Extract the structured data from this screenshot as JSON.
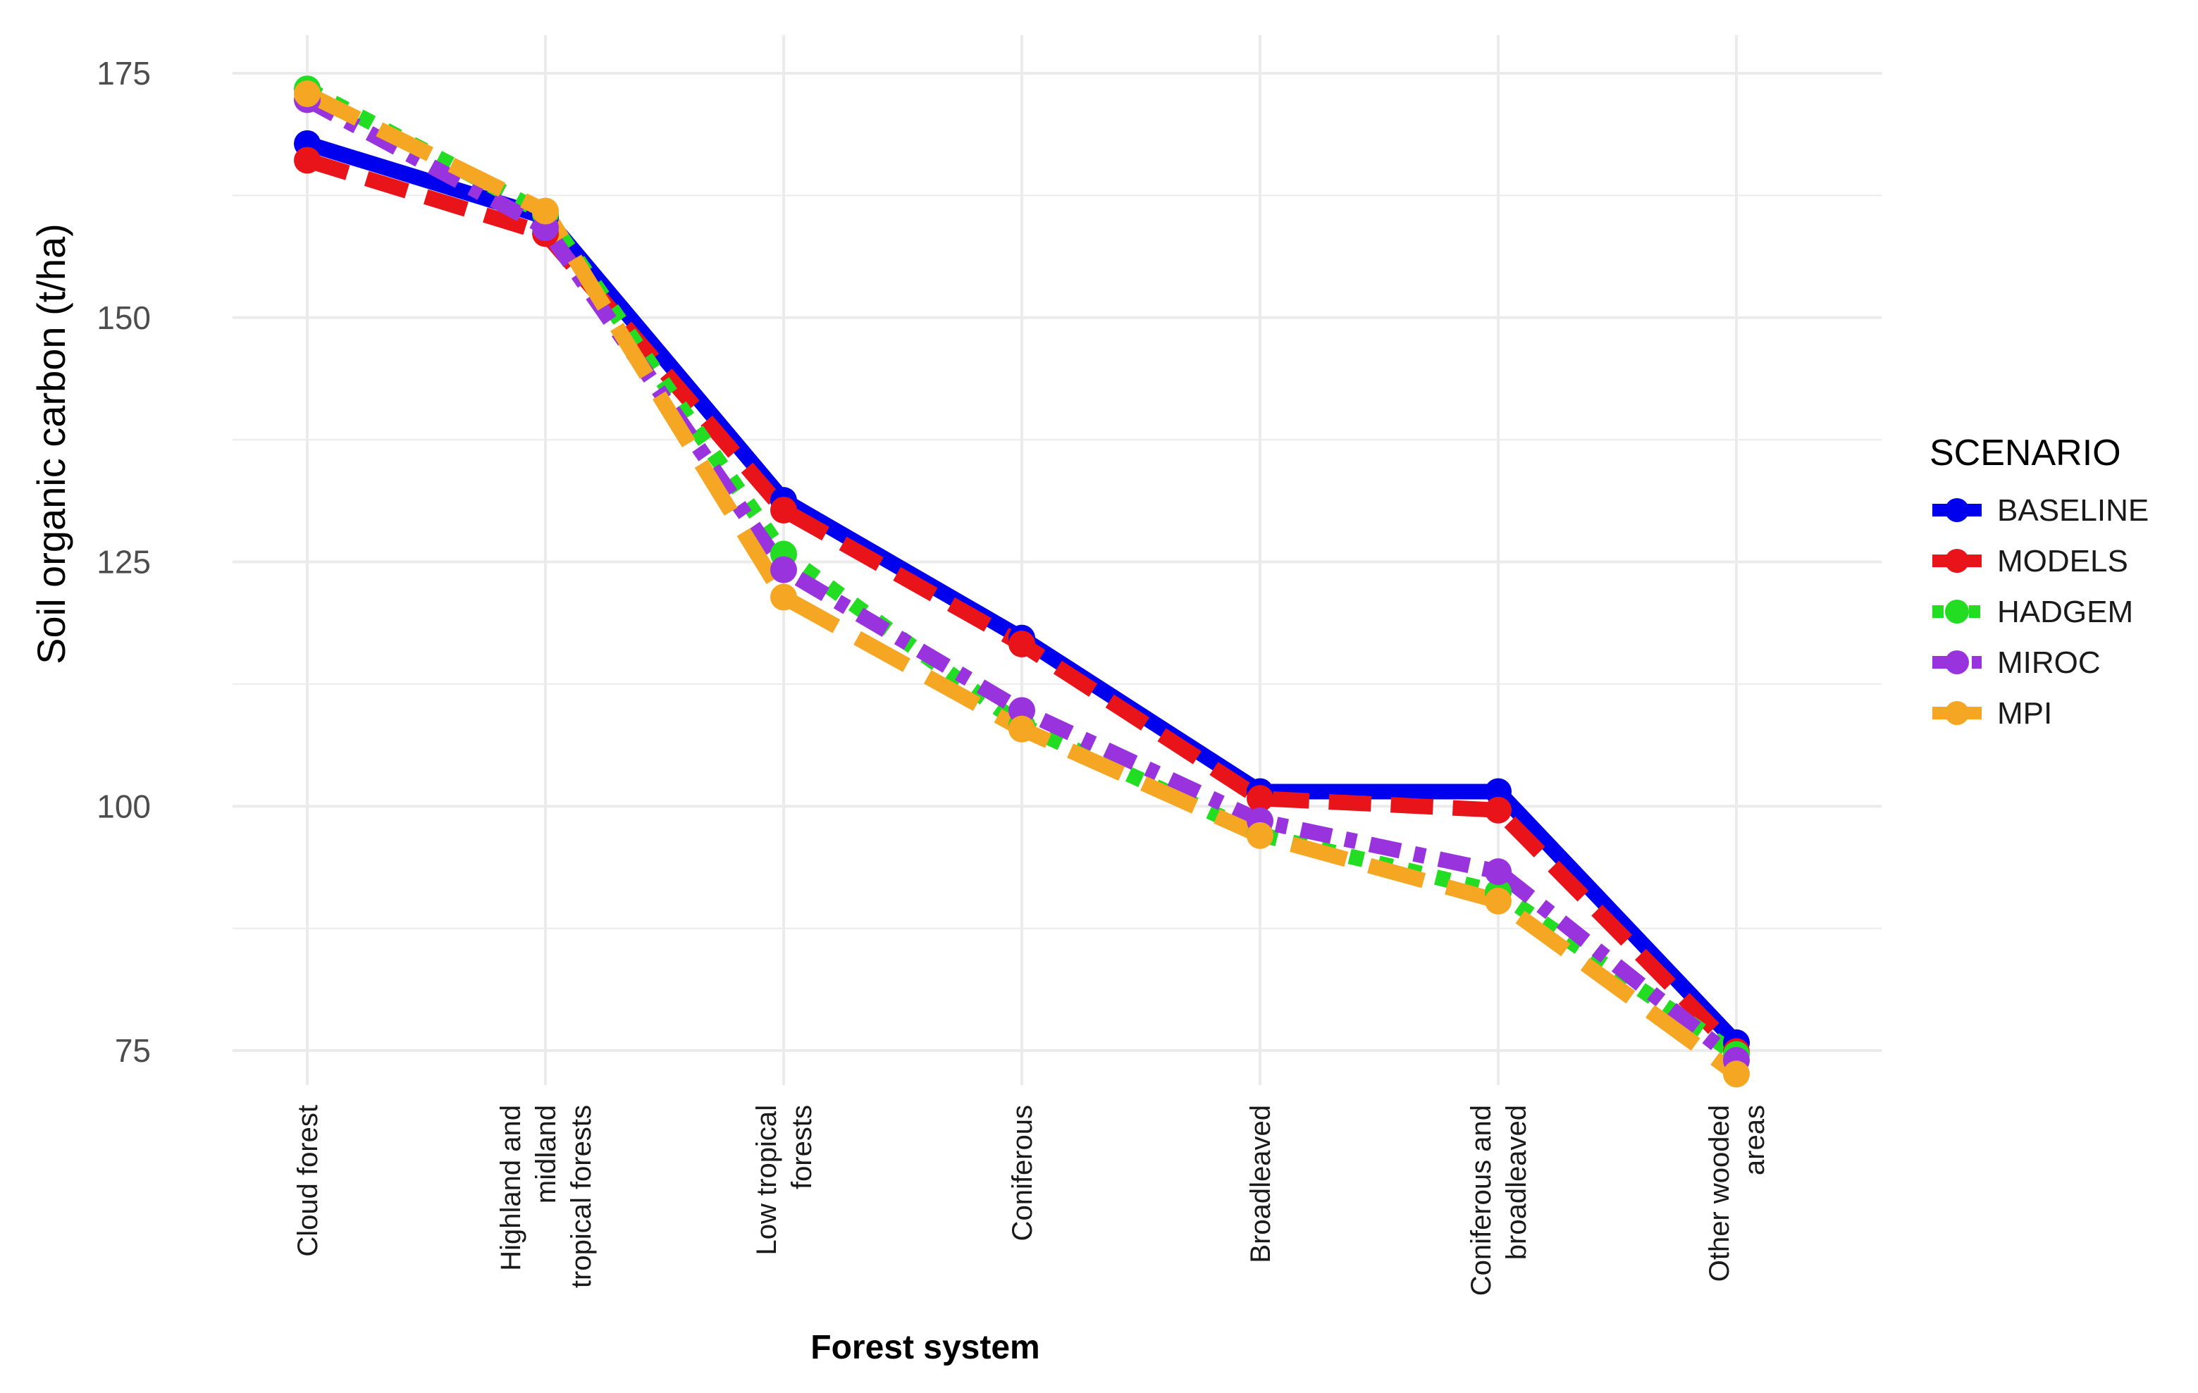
{
  "chart_data": {
    "type": "line",
    "title": "",
    "xlabel": "Forest system",
    "ylabel": "Soil organic carbon (t/ha)",
    "ylim": [
      72,
      177
    ],
    "yticks": [
      75,
      100,
      125,
      150,
      175
    ],
    "grid": true,
    "legend": {
      "title": "SCENARIO",
      "position": "right"
    },
    "categories": [
      [
        "Cloud forest"
      ],
      [
        "Highland and",
        "midland",
        "tropical forests"
      ],
      [
        "Low tropical",
        "forests"
      ],
      [
        "Coniferous"
      ],
      [
        "Broadleaved"
      ],
      [
        "Coniferous and",
        "broadleaved"
      ],
      [
        "Other wooded",
        "areas"
      ]
    ],
    "series": [
      {
        "name": "BASELINE",
        "color": "#0000ee",
        "dash": "solid",
        "values": [
          167.8,
          160.3,
          131.3,
          117.2,
          101.5,
          101.5,
          75.8
        ]
      },
      {
        "name": "MODELS",
        "color": "#e8141a",
        "dash": "dashed",
        "values": [
          166.1,
          158.6,
          130.3,
          116.6,
          100.8,
          99.6,
          74.9
        ]
      },
      {
        "name": "HADGEM",
        "color": "#22dd22",
        "dash": "dotted",
        "values": [
          173.4,
          160.6,
          125.8,
          108.3,
          97.1,
          91.2,
          74.6
        ]
      },
      {
        "name": "MIROC",
        "color": "#9933dd",
        "dash": "dashdot",
        "values": [
          172.3,
          159.2,
          124.2,
          109.8,
          98.5,
          93.3,
          74.0
        ]
      },
      {
        "name": "MPI",
        "color": "#f5a623",
        "dash": "longdash",
        "values": [
          172.9,
          160.9,
          121.4,
          107.9,
          97.0,
          90.3,
          72.6
        ]
      }
    ]
  }
}
